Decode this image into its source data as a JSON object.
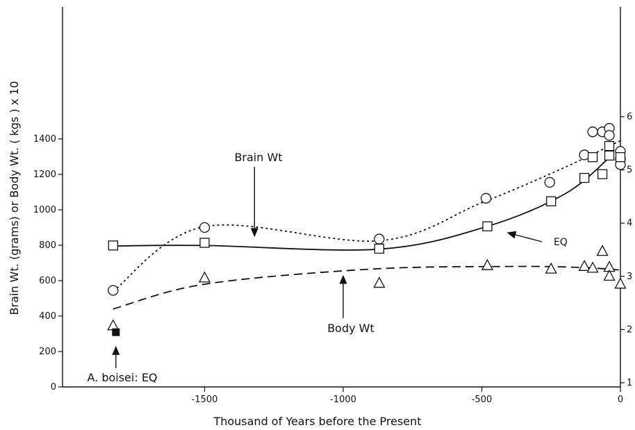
{
  "chart_data": {
    "type": "scatter",
    "title": "",
    "xlabel": "Thousand of Years before the Present",
    "ylabel": "Brain Wt. (grams) or Body Wt. ( kgs ) x 10",
    "y2label": "",
    "xlim": [
      -1850,
      0
    ],
    "ylim": [
      0,
      1450
    ],
    "y2lim": [
      1,
      6
    ],
    "xticks": [
      -1500,
      -1000,
      -500,
      0
    ],
    "xtick_labels": [
      "-1500",
      "-1000",
      "-500",
      "0"
    ],
    "yticks": [
      0,
      200,
      400,
      600,
      800,
      1000,
      1200,
      1400
    ],
    "ytick_labels": [
      "0",
      "200",
      "400",
      "600",
      "800",
      "1000",
      "1200",
      "1400"
    ],
    "y2ticks": [
      1,
      2,
      3,
      4,
      5,
      6
    ],
    "y2tick_labels": [
      "1",
      "2",
      "3",
      "4",
      "5",
      "6"
    ],
    "grid": false,
    "series": [
      {
        "name": "Brain Wt",
        "marker": "circle",
        "line": "dotted",
        "axis": "left",
        "points": [
          {
            "x": -1830,
            "y": 545
          },
          {
            "x": -1500,
            "y": 900
          },
          {
            "x": -870,
            "y": 835
          },
          {
            "x": -485,
            "y": 1065
          },
          {
            "x": -255,
            "y": 1155
          },
          {
            "x": -130,
            "y": 1310
          },
          {
            "x": -100,
            "y": 1440
          },
          {
            "x": -65,
            "y": 1440
          },
          {
            "x": -40,
            "y": 1460
          },
          {
            "x": -40,
            "y": 1420
          },
          {
            "x": 0,
            "y": 1330
          },
          {
            "x": 0,
            "y": 1285
          },
          {
            "x": 0,
            "y": 1255
          }
        ],
        "fit": [
          {
            "x": -1830,
            "y": 540
          },
          {
            "x": -1500,
            "y": 905
          },
          {
            "x": -870,
            "y": 825
          },
          {
            "x": -500,
            "y": 1040
          },
          {
            "x": -200,
            "y": 1240
          },
          {
            "x": 0,
            "y": 1390
          }
        ]
      },
      {
        "name": "EQ",
        "marker": "square",
        "line": "solid",
        "axis": "right",
        "points": [
          {
            "x": -1830,
            "y": 3.58
          },
          {
            "x": -1500,
            "y": 3.63
          },
          {
            "x": -870,
            "y": 3.52
          },
          {
            "x": -480,
            "y": 3.94
          },
          {
            "x": -250,
            "y": 4.41
          },
          {
            "x": -130,
            "y": 4.85
          },
          {
            "x": -100,
            "y": 5.24
          },
          {
            "x": -65,
            "y": 4.92
          },
          {
            "x": -40,
            "y": 5.45
          },
          {
            "x": -40,
            "y": 5.27
          },
          {
            "x": 0,
            "y": 5.24
          }
        ],
        "fit": [
          {
            "x": -1830,
            "y": 3.57
          },
          {
            "x": -1500,
            "y": 3.58
          },
          {
            "x": -870,
            "y": 3.51
          },
          {
            "x": -480,
            "y": 3.94
          },
          {
            "x": -200,
            "y": 4.55
          },
          {
            "x": -40,
            "y": 5.23
          }
        ]
      },
      {
        "name": "Body Wt",
        "marker": "triangle",
        "line": "dashed",
        "axis": "left",
        "points": [
          {
            "x": -1830,
            "y": 350
          },
          {
            "x": -1500,
            "y": 620
          },
          {
            "x": -870,
            "y": 590
          },
          {
            "x": -480,
            "y": 690
          },
          {
            "x": -250,
            "y": 670
          },
          {
            "x": -130,
            "y": 685
          },
          {
            "x": -100,
            "y": 675
          },
          {
            "x": -65,
            "y": 770
          },
          {
            "x": -40,
            "y": 680
          },
          {
            "x": -40,
            "y": 630
          },
          {
            "x": 0,
            "y": 585
          }
        ],
        "fit": [
          {
            "x": -1830,
            "y": 440
          },
          {
            "x": -1500,
            "y": 580
          },
          {
            "x": -900,
            "y": 665
          },
          {
            "x": -400,
            "y": 680
          },
          {
            "x": -150,
            "y": 675
          },
          {
            "x": 0,
            "y": 660
          }
        ]
      },
      {
        "name": "A. boisei: EQ",
        "marker": "filled-square",
        "axis": "right",
        "points": [
          {
            "x": -1820,
            "y": 1.95
          }
        ]
      }
    ],
    "annotations": [
      {
        "text": "Brain Wt",
        "points_to": {
          "x": -1320,
          "y": 885
        }
      },
      {
        "text": "EQ",
        "points_to": {
          "x": -455,
          "y": 3.85
        }
      },
      {
        "text": "Body Wt",
        "points_to": {
          "x": -1000,
          "y": 680
        }
      },
      {
        "text": "A. boisei: EQ",
        "points_to": {
          "x": -1820,
          "y": 1.85
        }
      }
    ]
  }
}
